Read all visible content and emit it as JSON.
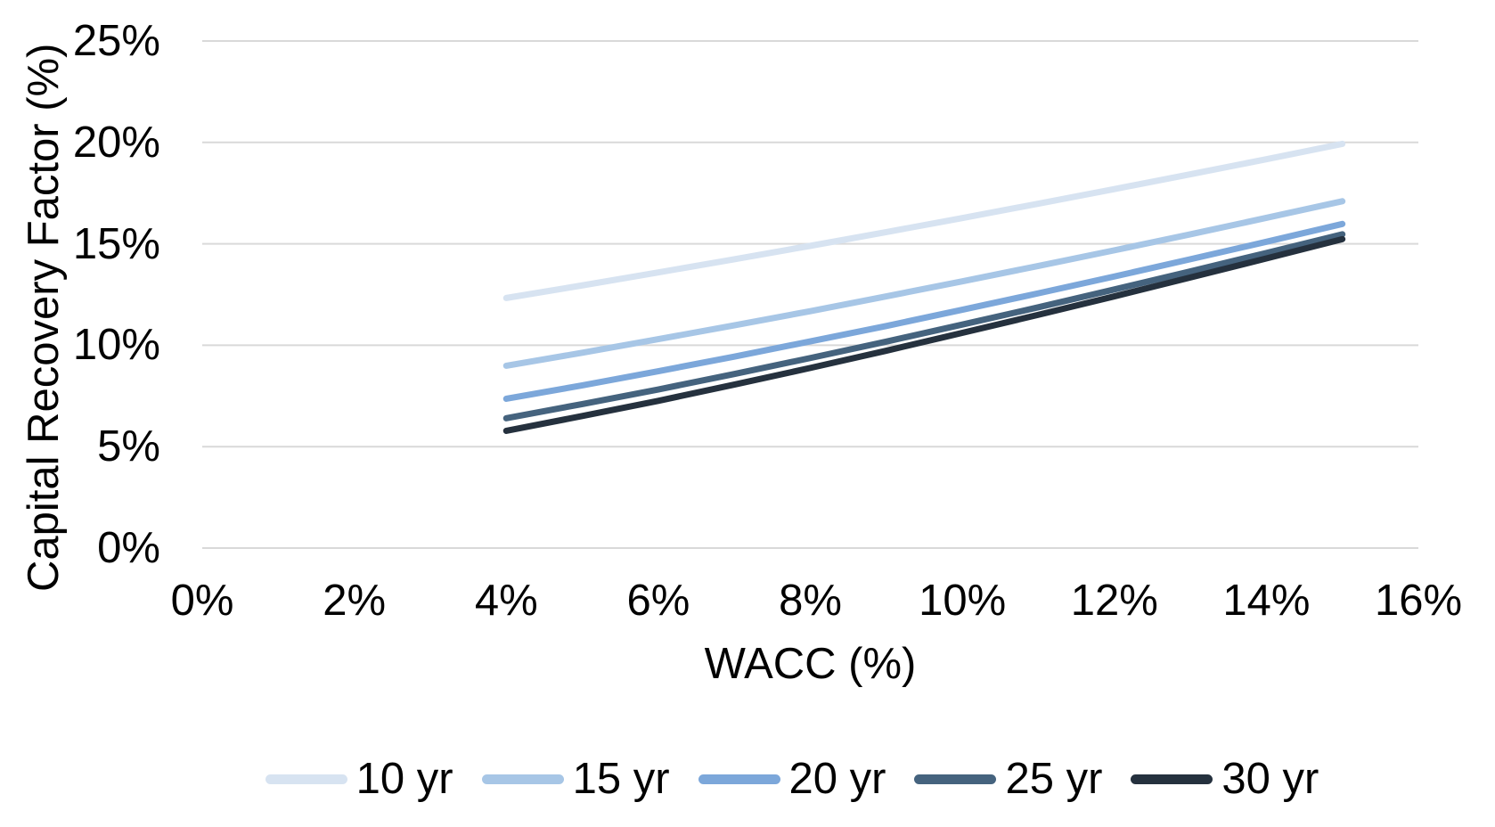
{
  "chart_data": {
    "type": "line",
    "title": "",
    "xlabel": "WACC (%)",
    "ylabel": "Capital Recovery Factor (%)",
    "xlim": [
      0,
      16
    ],
    "ylim": [
      0,
      25
    ],
    "grid": "horizontal",
    "gridline_color": "#d9d9d9",
    "legend_position": "bottom",
    "x_tick_values": [
      0,
      2,
      4,
      6,
      8,
      10,
      12,
      14,
      16
    ],
    "x_tick_labels": [
      "0%",
      "2%",
      "4%",
      "6%",
      "8%",
      "10%",
      "12%",
      "14%",
      "16%"
    ],
    "y_tick_values": [
      0,
      5,
      10,
      15,
      20,
      25
    ],
    "y_tick_labels": [
      "0%",
      "5%",
      "10%",
      "15%",
      "20%",
      "25%"
    ],
    "x": [
      4,
      5,
      6,
      7,
      8,
      9,
      10,
      11,
      12,
      13,
      14,
      15
    ],
    "series": [
      {
        "name": "10 yr",
        "color": "#d7e3f1",
        "values": [
          12.33,
          12.95,
          13.59,
          14.24,
          14.9,
          15.58,
          16.27,
          16.98,
          17.7,
          18.43,
          19.17,
          19.93
        ]
      },
      {
        "name": "15 yr",
        "color": "#a7c6e6",
        "values": [
          8.99,
          9.63,
          10.3,
          10.98,
          11.68,
          12.41,
          13.15,
          13.91,
          14.68,
          15.47,
          16.28,
          17.1
        ]
      },
      {
        "name": "20 yr",
        "color": "#7ca7da",
        "values": [
          7.36,
          8.02,
          8.72,
          9.44,
          10.19,
          10.95,
          11.75,
          12.56,
          13.39,
          14.24,
          15.1,
          15.98
        ]
      },
      {
        "name": "25 yr",
        "color": "#45637e",
        "values": [
          6.4,
          7.1,
          7.82,
          8.58,
          9.37,
          10.18,
          11.02,
          11.87,
          12.75,
          13.64,
          14.55,
          15.47
        ]
      },
      {
        "name": "30 yr",
        "color": "#25313e",
        "values": [
          5.78,
          6.51,
          7.26,
          8.06,
          8.88,
          9.73,
          10.61,
          11.5,
          12.41,
          13.34,
          14.28,
          15.23
        ]
      }
    ]
  }
}
